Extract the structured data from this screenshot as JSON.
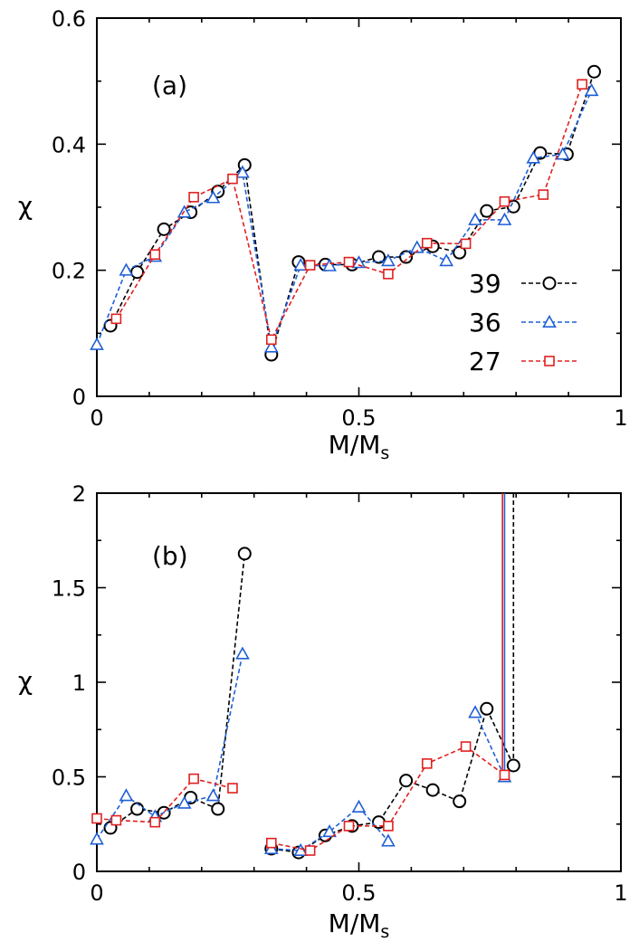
{
  "chart_data": [
    {
      "type": "line",
      "panel_label": "(a)",
      "xlabel": "M/M",
      "xlabel_sub": "s",
      "ylabel": "χ",
      "xlim": [
        0,
        1
      ],
      "ylim": [
        0,
        0.6
      ],
      "xticks": [
        {
          "value": 0,
          "label": "0"
        },
        {
          "value": 0.5,
          "label": "0.5"
        },
        {
          "value": 1,
          "label": "1"
        }
      ],
      "yticks": [
        {
          "value": 0,
          "label": "0"
        },
        {
          "value": 0.2,
          "label": "0.2"
        },
        {
          "value": 0.4,
          "label": "0.4"
        },
        {
          "value": 0.6,
          "label": "0.6"
        }
      ],
      "legend_position": "right",
      "series": [
        {
          "name": "39",
          "color": "#000000",
          "marker": "circle",
          "x": [
            0.026,
            0.077,
            0.128,
            0.179,
            0.231,
            0.282,
            0.333,
            0.385,
            0.436,
            0.487,
            0.538,
            0.59,
            0.641,
            0.692,
            0.744,
            0.795,
            0.846,
            0.897,
            0.949
          ],
          "y": [
            0.112,
            0.197,
            0.265,
            0.292,
            0.325,
            0.367,
            0.066,
            0.213,
            0.209,
            0.209,
            0.221,
            0.221,
            0.238,
            0.228,
            0.294,
            0.301,
            0.386,
            0.384,
            0.515
          ]
        },
        {
          "name": "36",
          "color": "#1f5fd6",
          "marker": "triangle",
          "x": [
            0.0,
            0.056,
            0.111,
            0.167,
            0.222,
            0.278,
            0.333,
            0.389,
            0.444,
            0.5,
            0.556,
            0.611,
            0.667,
            0.722,
            0.778,
            0.833,
            0.889,
            0.944
          ],
          "y": [
            0.082,
            0.2,
            0.222,
            0.292,
            0.315,
            0.355,
            0.078,
            0.208,
            0.207,
            0.212,
            0.215,
            0.236,
            0.215,
            0.28,
            0.28,
            0.378,
            0.384,
            0.485
          ]
        },
        {
          "name": "27",
          "color": "#e02020",
          "marker": "square",
          "x": [
            0.037,
            0.111,
            0.185,
            0.259,
            0.333,
            0.407,
            0.481,
            0.556,
            0.63,
            0.704,
            0.778,
            0.852,
            0.926
          ],
          "y": [
            0.123,
            0.225,
            0.316,
            0.345,
            0.09,
            0.208,
            0.213,
            0.194,
            0.243,
            0.242,
            0.309,
            0.32,
            0.495
          ]
        }
      ]
    },
    {
      "type": "line",
      "panel_label": "(b)",
      "xlabel": "M/M",
      "xlabel_sub": "s",
      "ylabel": "χ",
      "xlim": [
        0,
        1
      ],
      "ylim": [
        0,
        2
      ],
      "xticks": [
        {
          "value": 0,
          "label": "0"
        },
        {
          "value": 0.5,
          "label": "0.5"
        },
        {
          "value": 1,
          "label": "1"
        }
      ],
      "yticks": [
        {
          "value": 0,
          "label": "0"
        },
        {
          "value": 0.5,
          "label": "0.5"
        },
        {
          "value": 1,
          "label": "1"
        },
        {
          "value": 1.5,
          "label": "1.5"
        },
        {
          "value": 2,
          "label": "2"
        }
      ],
      "series": [
        {
          "name": "39",
          "color": "#000000",
          "marker": "circle",
          "segments": [
            {
              "x": [
                0.026,
                0.077,
                0.128,
                0.179,
                0.231,
                0.282
              ],
              "y": [
                0.23,
                0.33,
                0.31,
                0.39,
                0.33,
                1.68
              ]
            },
            {
              "x": [
                0.333,
                0.385,
                0.436,
                0.487,
                0.538,
                0.59,
                0.641,
                0.692,
                0.744,
                0.795
              ],
              "y": [
                0.12,
                0.1,
                0.19,
                0.24,
                0.26,
                0.48,
                0.43,
                0.37,
                0.86,
                0.56
              ]
            }
          ],
          "spike": {
            "x": 0.795,
            "from": 0.56,
            "to": 2.0
          }
        },
        {
          "name": "36",
          "color": "#1f5fd6",
          "marker": "triangle",
          "segments": [
            {
              "x": [
                0.0,
                0.056,
                0.111,
                0.167,
                0.222,
                0.278
              ],
              "y": [
                0.17,
                0.4,
                0.29,
                0.36,
                0.4,
                1.15
              ]
            },
            {
              "x": [
                0.333,
                0.389,
                0.444,
                0.5,
                0.556
              ],
              "y": [
                0.12,
                0.11,
                0.21,
                0.34,
                0.16
              ]
            },
            {
              "x": [
                0.722,
                0.778
              ],
              "y": [
                0.84,
                0.5
              ]
            }
          ],
          "spike": {
            "x": 0.778,
            "from": 0.5,
            "to": 2.0
          }
        },
        {
          "name": "27",
          "color": "#e02020",
          "marker": "square",
          "segments": [
            {
              "x": [
                0.0,
                0.037,
                0.111,
                0.185,
                0.259
              ],
              "y": [
                0.28,
                0.27,
                0.26,
                0.49,
                0.44
              ]
            },
            {
              "x": [
                0.333,
                0.407,
                0.481,
                0.556,
                0.63,
                0.704,
                0.778
              ],
              "y": [
                0.15,
                0.11,
                0.24,
                0.24,
                0.57,
                0.66,
                0.51
              ]
            }
          ],
          "spike": {
            "x": 0.774,
            "from": 0.51,
            "to": 2.0
          }
        }
      ]
    }
  ]
}
